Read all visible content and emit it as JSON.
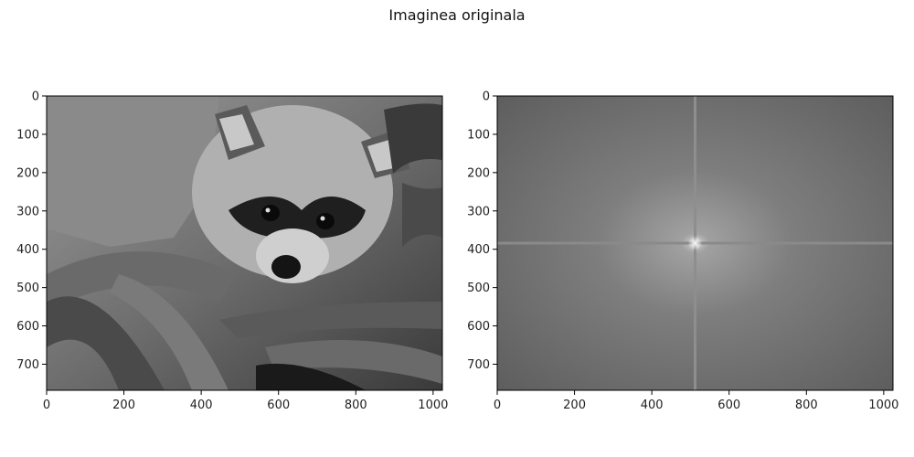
{
  "figure": {
    "suptitle": "Imaginea originala"
  },
  "chart_data": [
    {
      "type": "image",
      "name": "left-image",
      "content": "grayscale photo of a raccoon",
      "colormap": "gray",
      "xlim": [
        0,
        1024
      ],
      "ylim": [
        768,
        0
      ],
      "x_ticks": [
        0,
        200,
        400,
        600,
        800,
        1000
      ],
      "y_ticks": [
        0,
        100,
        200,
        300,
        400,
        500,
        600,
        700
      ]
    },
    {
      "type": "image",
      "name": "right-image",
      "content": "log-magnitude Fourier spectrum (grayscale), bright center at (512, 384)",
      "colormap": "gray",
      "xlim": [
        0,
        1024
      ],
      "ylim": [
        768,
        0
      ],
      "x_ticks": [
        0,
        200,
        400,
        600,
        800,
        1000
      ],
      "y_ticks": [
        0,
        100,
        200,
        300,
        400,
        500,
        600,
        700
      ]
    }
  ]
}
